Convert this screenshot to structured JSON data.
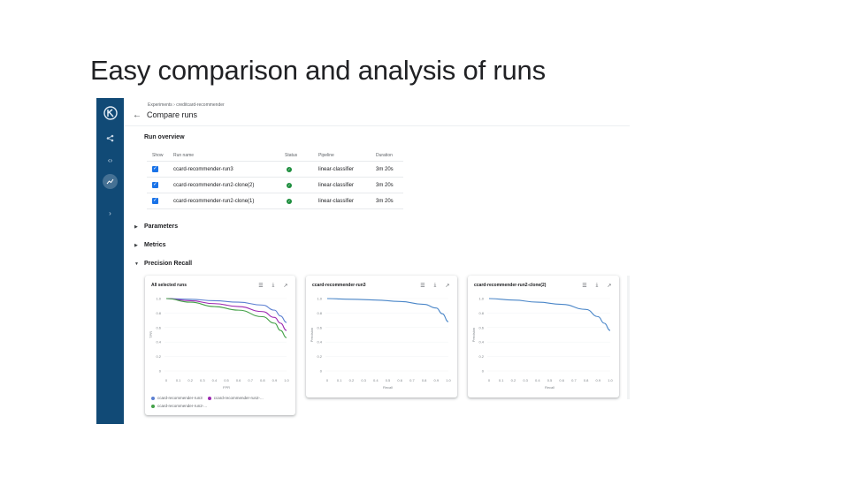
{
  "slide": {
    "title": "Easy comparison and analysis of runs"
  },
  "breadcrumb": {
    "text": "Experiments  ›  creditcard-recommender"
  },
  "header": {
    "title": "Compare runs"
  },
  "run_overview": {
    "title": "Run overview",
    "columns": {
      "show": "Show",
      "name": "Run name",
      "status": "Status",
      "pipeline": "Pipeline",
      "duration": "Duration"
    },
    "rows": [
      {
        "name": "ccard-recommender-run3",
        "pipeline": "linear-classifier",
        "duration": "3m 20s",
        "checked": true,
        "status": "success"
      },
      {
        "name": "ccard-recommender-run2-clone(2)",
        "pipeline": "linear-classifier",
        "duration": "3m 20s",
        "checked": true,
        "status": "success"
      },
      {
        "name": "ccard-recommender-run2-clone(1)",
        "pipeline": "linear-classifier",
        "duration": "3m 20s",
        "checked": true,
        "status": "success"
      }
    ]
  },
  "sections": {
    "parameters": "Parameters",
    "metrics": "Metrics",
    "precision_recall": "Precision Recall"
  },
  "icons": {
    "table": "table-view-icon",
    "download": "download-icon",
    "open": "open-in-new-icon"
  },
  "cards": [
    {
      "title": "All selected runs",
      "legend": [
        {
          "label": "ccard-recommender-run3",
          "color": "#5b7fd1"
        },
        {
          "label": "ccard-recommender-run2-...",
          "color": "#9c27b0"
        },
        {
          "label": "ccard-recommender-run2-...",
          "color": "#43a047"
        }
      ]
    },
    {
      "title": "ccard-recommender-run3"
    },
    {
      "title": "ccard-recommender-run2-clone(2)"
    }
  ],
  "chart_data": [
    {
      "type": "line",
      "title": "All selected runs",
      "xlabel": "FPR",
      "ylabel": "TPR",
      "xlim": [
        0,
        1
      ],
      "ylim": [
        0,
        1
      ],
      "x_ticks": [
        "0",
        "0.1",
        "0.2",
        "0.3",
        "0.4",
        "0.5",
        "0.6",
        "0.7",
        "0.8",
        "0.9",
        "1.0"
      ],
      "y_ticks": [
        "0",
        "0.2",
        "0.4",
        "0.6",
        "0.8",
        "1.0"
      ],
      "grid": false,
      "legend": "bottom",
      "series": [
        {
          "name": "ccard-recommender-run3",
          "color": "#5b7fd1",
          "x": [
            0,
            0.2,
            0.4,
            0.6,
            0.8,
            0.9,
            0.95,
            1.0
          ],
          "y": [
            1.0,
            0.99,
            0.97,
            0.95,
            0.91,
            0.84,
            0.76,
            0.67
          ]
        },
        {
          "name": "ccard-recommender-run2-...",
          "color": "#9c27b0",
          "x": [
            0,
            0.2,
            0.4,
            0.6,
            0.8,
            0.9,
            0.95,
            1.0
          ],
          "y": [
            1.0,
            0.97,
            0.93,
            0.89,
            0.82,
            0.74,
            0.66,
            0.56
          ]
        },
        {
          "name": "ccard-recommender-run2-...",
          "color": "#43a047",
          "x": [
            0,
            0.2,
            0.4,
            0.6,
            0.8,
            0.9,
            0.95,
            1.0
          ],
          "y": [
            1.0,
            0.95,
            0.89,
            0.84,
            0.75,
            0.66,
            0.56,
            0.46
          ]
        }
      ]
    },
    {
      "type": "line",
      "title": "ccard-recommender-run3",
      "xlabel": "Recall",
      "ylabel": "Precision",
      "xlim": [
        0,
        1
      ],
      "ylim": [
        0,
        1
      ],
      "x_ticks": [
        "0",
        "0.1",
        "0.2",
        "0.3",
        "0.4",
        "0.5",
        "0.6",
        "0.7",
        "0.8",
        "0.9",
        "1.0"
      ],
      "y_ticks": [
        "0",
        "0.2",
        "0.4",
        "0.6",
        "0.8",
        "1.0"
      ],
      "grid": false,
      "series": [
        {
          "color": "#4a86c8",
          "x": [
            0,
            0.2,
            0.4,
            0.6,
            0.8,
            0.9,
            0.95,
            1.0
          ],
          "y": [
            1.0,
            0.99,
            0.98,
            0.96,
            0.92,
            0.87,
            0.79,
            0.68
          ]
        }
      ]
    },
    {
      "type": "line",
      "title": "ccard-recommender-run2-clone(2)",
      "xlabel": "Recall",
      "ylabel": "Precision",
      "xlim": [
        0,
        1
      ],
      "ylim": [
        0,
        1
      ],
      "x_ticks": [
        "0",
        "0.1",
        "0.2",
        "0.3",
        "0.4",
        "0.5",
        "0.6",
        "0.7",
        "0.8",
        "0.9",
        "1.0"
      ],
      "y_ticks": [
        "0",
        "0.2",
        "0.4",
        "0.6",
        "0.8",
        "1.0"
      ],
      "grid": false,
      "series": [
        {
          "color": "#4a86c8",
          "x": [
            0,
            0.2,
            0.4,
            0.6,
            0.8,
            0.9,
            0.95,
            1.0
          ],
          "y": [
            1.0,
            0.98,
            0.95,
            0.92,
            0.85,
            0.75,
            0.66,
            0.56
          ]
        }
      ]
    }
  ]
}
